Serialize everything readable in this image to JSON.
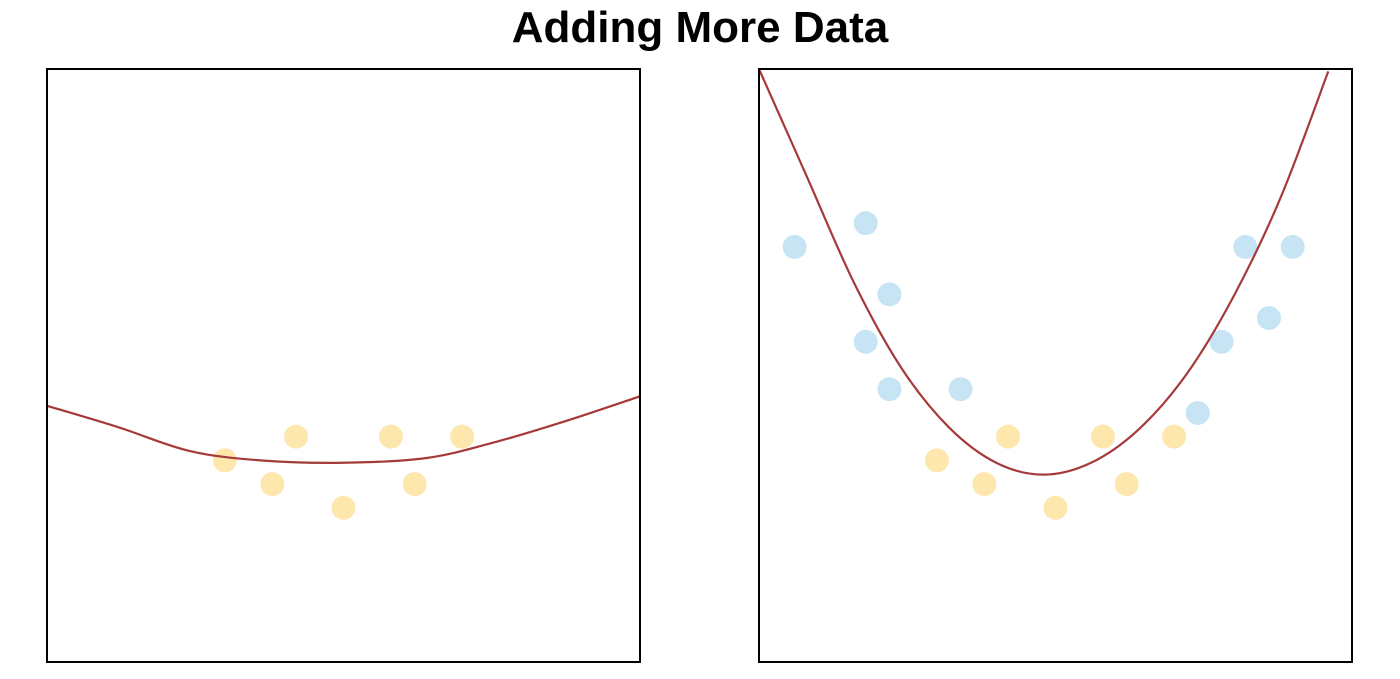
{
  "title": "Adding More Data",
  "colors": {
    "curve": "#a53a3a",
    "original_points": "#fde7ad",
    "new_points": "#c6e4f3",
    "frame": "#000000"
  },
  "chart_data": [
    {
      "type": "scatter",
      "title": "",
      "xlim": [
        0,
        25
      ],
      "ylim": [
        0,
        25
      ],
      "grid": false,
      "axes_ticks": false,
      "series": [
        {
          "points": [
            [
              7.5,
              8.5
            ],
            [
              9.5,
              7.5
            ],
            [
              10.5,
              9.5
            ],
            [
              12.5,
              6.5
            ],
            [
              14.5,
              9.5
            ],
            [
              15.5,
              7.5
            ],
            [
              17.5,
              9.5
            ]
          ]
        }
      ],
      "fit_curve": [
        [
          0,
          10.8
        ],
        [
          3,
          9.9
        ],
        [
          6,
          8.9
        ],
        [
          9,
          8.5
        ],
        [
          12.5,
          8.4
        ],
        [
          16,
          8.6
        ],
        [
          19,
          9.3
        ],
        [
          22,
          10.2
        ],
        [
          25,
          11.2
        ]
      ]
    },
    {
      "type": "scatter",
      "title": "",
      "xlim": [
        0,
        25
      ],
      "ylim": [
        0,
        25
      ],
      "grid": false,
      "axes_ticks": false,
      "series": [
        {
          "points": [
            [
              7.5,
              8.5
            ],
            [
              9.5,
              7.5
            ],
            [
              10.5,
              9.5
            ],
            [
              12.5,
              6.5
            ],
            [
              14.5,
              9.5
            ],
            [
              15.5,
              7.5
            ],
            [
              17.5,
              9.5
            ]
          ]
        },
        {
          "points": [
            [
              1.5,
              17.5
            ],
            [
              4.5,
              18.5
            ],
            [
              5.5,
              15.5
            ],
            [
              4.5,
              13.5
            ],
            [
              5.5,
              11.5
            ],
            [
              8.5,
              11.5
            ],
            [
              18.5,
              10.5
            ],
            [
              19.5,
              13.5
            ],
            [
              20.5,
              17.5
            ],
            [
              21.5,
              14.5
            ],
            [
              22.5,
              17.5
            ]
          ]
        }
      ],
      "fit_curve": [
        [
          0,
          25
        ],
        [
          2,
          20.5
        ],
        [
          4,
          16
        ],
        [
          6,
          12.4
        ],
        [
          8,
          9.9
        ],
        [
          10,
          8.4
        ],
        [
          12,
          7.9
        ],
        [
          14,
          8.4
        ],
        [
          16,
          9.8
        ],
        [
          18,
          12.1
        ],
        [
          20,
          15.4
        ],
        [
          22,
          19.6
        ],
        [
          24,
          24.9
        ]
      ]
    }
  ]
}
